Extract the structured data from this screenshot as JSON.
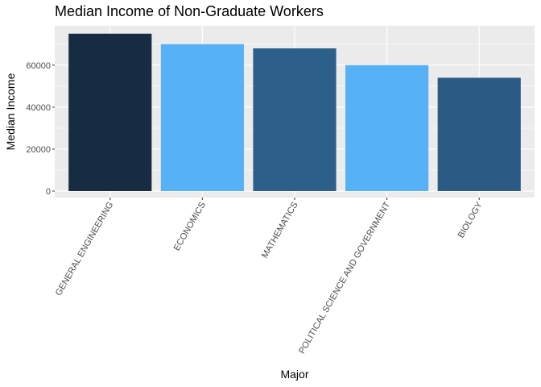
{
  "chart_data": {
    "type": "bar",
    "title": "Median Income of Non-Graduate Workers",
    "xlabel": "Major",
    "ylabel": "Median Income",
    "categories": [
      "GENERAL ENGINEERING",
      "ECONOMICS",
      "MATHEMATICS",
      "POLITICAL SCIENCE AND GOVERNMENT",
      "BIOLOGY"
    ],
    "values": [
      75000,
      70000,
      68000,
      60000,
      54000
    ],
    "bar_colors": [
      "#172c43",
      "#56b1f7",
      "#2c5f89",
      "#56b1f7",
      "#2b5a85"
    ],
    "ylim": [
      0,
      78750
    ],
    "yticks": [
      0,
      20000,
      40000,
      60000
    ],
    "ytick_labels": [
      "0",
      "20000",
      "40000",
      "60000"
    ],
    "grid": true,
    "legend": "none",
    "panel_background": "#ebebeb",
    "gridline_color": "#ffffff"
  }
}
